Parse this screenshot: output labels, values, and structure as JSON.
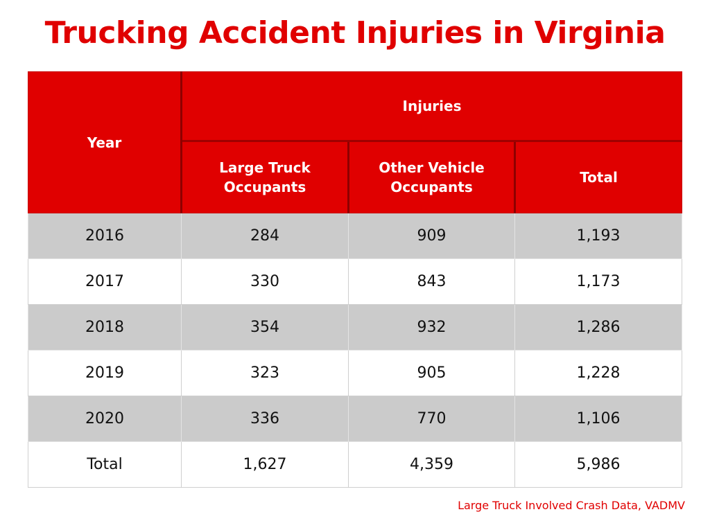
{
  "title": "Trucking Accident Injuries in Virginia",
  "chart_data": {
    "type": "table",
    "title": "Trucking Accident Injuries in Virginia",
    "columns": {
      "year": "Year",
      "group": "Injuries",
      "sub": [
        "Large Truck Occupants",
        "Other Vehicle Occupants",
        "Total"
      ]
    },
    "rows": [
      {
        "year": "2016",
        "large_truck": "284",
        "other_vehicle": "909",
        "total": "1,193"
      },
      {
        "year": "2017",
        "large_truck": "330",
        "other_vehicle": "843",
        "total": "1,173"
      },
      {
        "year": "2018",
        "large_truck": "354",
        "other_vehicle": "932",
        "total": "1,286"
      },
      {
        "year": "2019",
        "large_truck": "323",
        "other_vehicle": "905",
        "total": "1,228"
      },
      {
        "year": "2020",
        "large_truck": "336",
        "other_vehicle": "770",
        "total": "1,106"
      },
      {
        "year": "Total",
        "large_truck": "1,627",
        "other_vehicle": "4,359",
        "total": "5,986"
      }
    ],
    "source": "Large Truck Involved Crash Data, VADMV"
  },
  "colors": {
    "accent": "#e00000",
    "row_shade": "#cbcbcb",
    "row_plain": "#ffffff"
  }
}
